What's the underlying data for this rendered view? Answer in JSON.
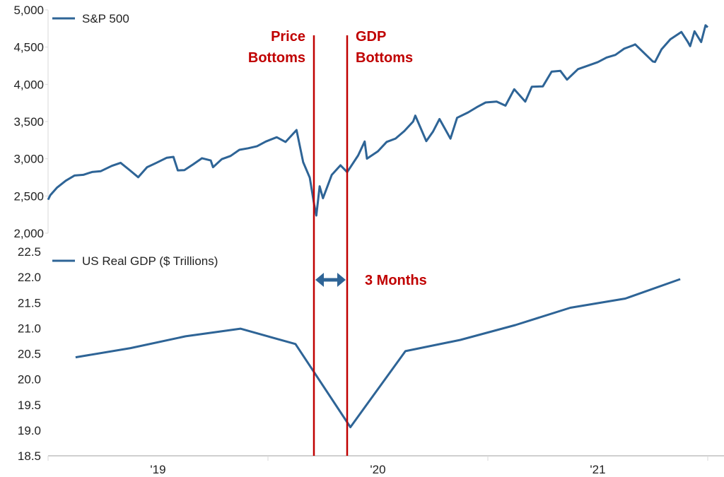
{
  "chart_data": [
    {
      "type": "line",
      "title": "",
      "legend": [
        "S&P 500"
      ],
      "legend_placement": "top-left",
      "ylim": [
        2000,
        5000
      ],
      "yticks": [
        "2,000",
        "2,500",
        "3,000",
        "3,500",
        "4,000",
        "4,500",
        "5,000"
      ],
      "ytick_values": [
        2000,
        2500,
        3000,
        3500,
        4000,
        4500,
        5000
      ],
      "xlim": [
        2019,
        2022
      ],
      "series": [
        {
          "name": "S&P 500",
          "color": "#2e6496",
          "points": [
            [
              2019.0,
              2450
            ],
            [
              2019.01,
              2510
            ],
            [
              2019.04,
              2610
            ],
            [
              2019.08,
              2704
            ],
            [
              2019.12,
              2775
            ],
            [
              2019.16,
              2784
            ],
            [
              2019.2,
              2822
            ],
            [
              2019.24,
              2834
            ],
            [
              2019.29,
              2905
            ],
            [
              2019.33,
              2946
            ],
            [
              2019.37,
              2850
            ],
            [
              2019.41,
              2752
            ],
            [
              2019.45,
              2887
            ],
            [
              2019.49,
              2942
            ],
            [
              2019.54,
              3014
            ],
            [
              2019.57,
              3025
            ],
            [
              2019.59,
              2844
            ],
            [
              2019.62,
              2848
            ],
            [
              2019.66,
              2926
            ],
            [
              2019.7,
              3007
            ],
            [
              2019.74,
              2977
            ],
            [
              2019.75,
              2887
            ],
            [
              2019.79,
              2995
            ],
            [
              2019.83,
              3038
            ],
            [
              2019.87,
              3120
            ],
            [
              2019.91,
              3141
            ],
            [
              2019.95,
              3169
            ],
            [
              2019.99,
              3231
            ],
            [
              2020.04,
              3289
            ],
            [
              2020.08,
              3226
            ],
            [
              2020.13,
              3386
            ],
            [
              2020.16,
              2954
            ],
            [
              2020.19,
              2747
            ],
            [
              2020.21,
              2386
            ],
            [
              2020.22,
              2237
            ],
            [
              2020.235,
              2630
            ],
            [
              2020.25,
              2470
            ],
            [
              2020.29,
              2783
            ],
            [
              2020.33,
              2912
            ],
            [
              2020.36,
              2820
            ],
            [
              2020.41,
              3044
            ],
            [
              2020.44,
              3232
            ],
            [
              2020.45,
              3002
            ],
            [
              2020.5,
              3100
            ],
            [
              2020.54,
              3227
            ],
            [
              2020.58,
              3271
            ],
            [
              2020.62,
              3372
            ],
            [
              2020.66,
              3500
            ],
            [
              2020.67,
              3580
            ],
            [
              2020.72,
              3237
            ],
            [
              2020.75,
              3363
            ],
            [
              2020.78,
              3534
            ],
            [
              2020.83,
              3270
            ],
            [
              2020.86,
              3550
            ],
            [
              2020.91,
              3622
            ],
            [
              2020.95,
              3694
            ],
            [
              2020.99,
              3756
            ],
            [
              2021.04,
              3768
            ],
            [
              2021.08,
              3714
            ],
            [
              2021.12,
              3934
            ],
            [
              2021.17,
              3768
            ],
            [
              2021.2,
              3968
            ],
            [
              2021.25,
              3973
            ],
            [
              2021.29,
              4170
            ],
            [
              2021.33,
              4181
            ],
            [
              2021.36,
              4063
            ],
            [
              2021.41,
              4204
            ],
            [
              2021.45,
              4246
            ],
            [
              2021.5,
              4298
            ],
            [
              2021.54,
              4360
            ],
            [
              2021.58,
              4395
            ],
            [
              2021.62,
              4479
            ],
            [
              2021.66,
              4523
            ],
            [
              2021.67,
              4537
            ],
            [
              2021.75,
              4308
            ],
            [
              2021.76,
              4300
            ],
            [
              2021.79,
              4471
            ],
            [
              2021.83,
              4605
            ],
            [
              2021.88,
              4704
            ],
            [
              2021.91,
              4567
            ],
            [
              2021.92,
              4513
            ],
            [
              2021.94,
              4712
            ],
            [
              2021.97,
              4568
            ],
            [
              2021.99,
              4793
            ],
            [
              2022.0,
              4766
            ]
          ]
        }
      ]
    },
    {
      "type": "line",
      "title": "",
      "legend": [
        "US Real GDP ($ Trillions)"
      ],
      "legend_placement": "top-left",
      "ylim": [
        18.5,
        22.5
      ],
      "yticks": [
        "18.5",
        "19.0",
        "19.5",
        "20.0",
        "20.5",
        "21.0",
        "21.5",
        "22.0",
        "22.5"
      ],
      "ytick_values": [
        18.5,
        19.0,
        19.5,
        20.0,
        20.5,
        21.0,
        21.5,
        22.0,
        22.5
      ],
      "xlim": [
        2019,
        2022
      ],
      "xticks": [
        "'19",
        "'20",
        "'21"
      ],
      "xtick_centers": [
        2019.5,
        2020.5,
        2021.5
      ],
      "xtick_boundaries": [
        2019,
        2020,
        2021,
        2022
      ],
      "series": [
        {
          "name": "US Real GDP ($ Trillions)",
          "color": "#2e6496",
          "points": [
            [
              2019.125,
              20.43
            ],
            [
              2019.375,
              20.61
            ],
            [
              2019.625,
              20.84
            ],
            [
              2019.875,
              20.99
            ],
            [
              2020.125,
              20.69
            ],
            [
              2020.375,
              19.06
            ],
            [
              2020.625,
              20.55
            ],
            [
              2020.875,
              20.77
            ],
            [
              2021.125,
              21.06
            ],
            [
              2021.375,
              21.4
            ],
            [
              2021.625,
              21.58
            ],
            [
              2021.875,
              21.96
            ]
          ]
        }
      ]
    }
  ],
  "annotations": {
    "price_bottom": {
      "lines": [
        "Price",
        "Bottoms"
      ],
      "x": 2020.22
    },
    "gdp_bottom": {
      "lines": [
        "GDP",
        "Bottoms"
      ],
      "x": 2020.37
    },
    "gap_label": "3 Months",
    "line_color": "#c00000",
    "arrow_color": "#2e6496"
  }
}
